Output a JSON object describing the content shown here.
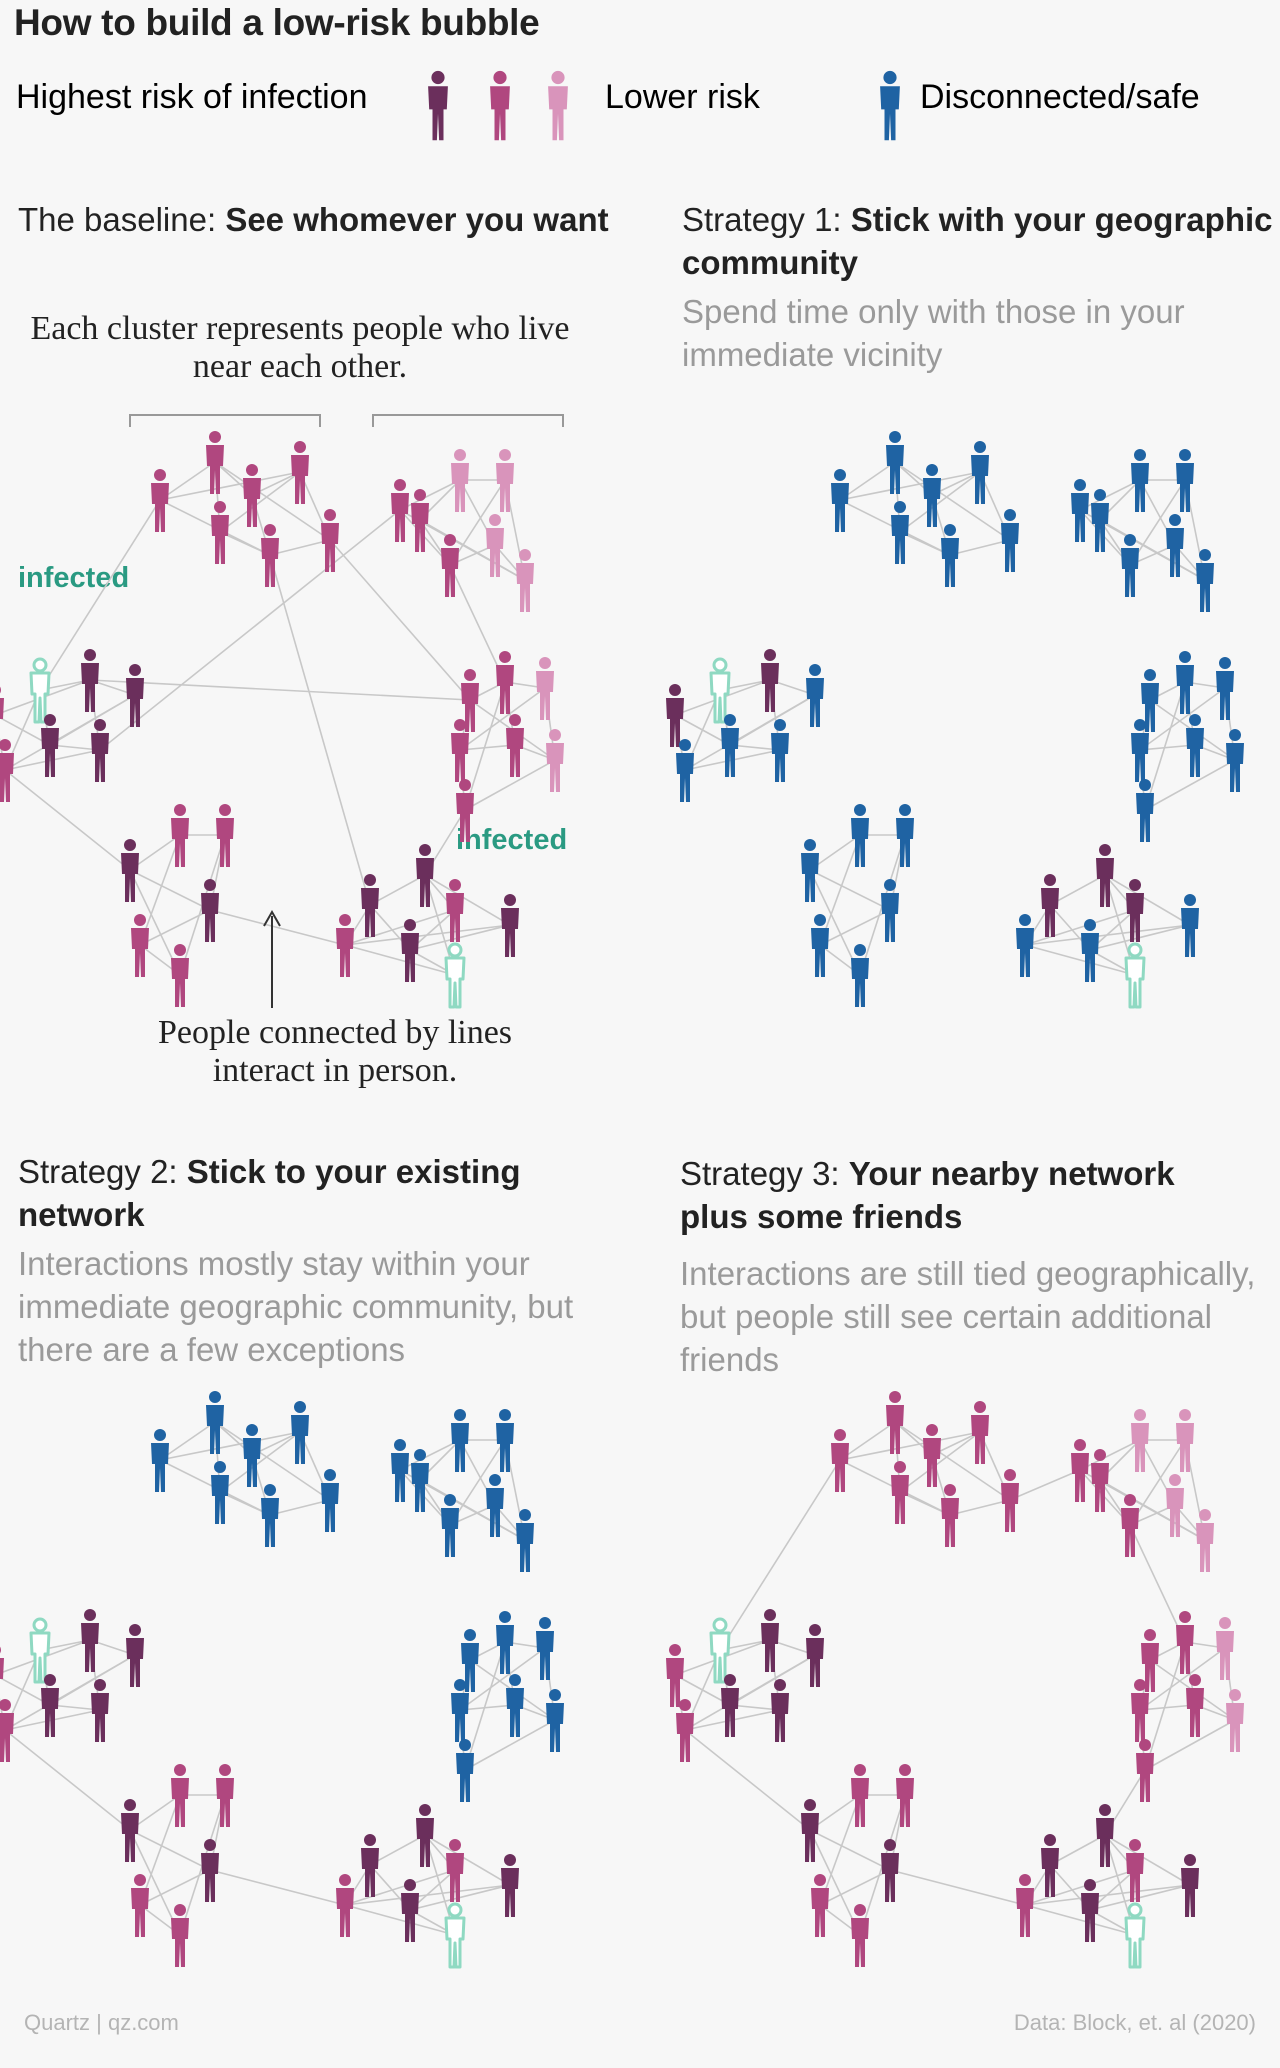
{
  "title": "How to build a low-risk bubble",
  "legend": {
    "high_label": "Highest risk of infection",
    "low_label": "Lower risk",
    "safe_label": "Disconnected/safe"
  },
  "colors": {
    "high": "#6b2f5c",
    "mid": "#b0477f",
    "low": "#d994bb",
    "safe": "#1f63a3",
    "infected_outline": "#8fd9c2",
    "infected_fill": "#ffffff",
    "infected_text": "#2a9a82",
    "line": "#c8c8c8"
  },
  "panels": {
    "baseline": {
      "prefix": "The baseline: ",
      "bold": "See whomever you want",
      "annotation_top": "Each cluster represents people who live near each other.",
      "annotation_bottom": "People connected by lines interact in person.",
      "infected_label_1": "infected",
      "infected_label_2": "infected"
    },
    "s1": {
      "prefix": "Strategy 1: ",
      "bold": "Stick with your geographic community",
      "subtitle": "Spend time only with those in your immediate vicinity"
    },
    "s2": {
      "prefix": "Strategy 2: ",
      "bold": "Stick to your existing network",
      "subtitle": "Interactions mostly stay within your immediate geographic community, but there are a few exceptions"
    },
    "s3": {
      "prefix": "Strategy 3: ",
      "bold": "Your nearby network plus some friends",
      "subtitle": "Interactions are still tied geographically, but people still see certain additional friends"
    }
  },
  "footer": {
    "source_left": "Quartz | qz.com",
    "source_right": "Data: Block, et. al (2020)"
  }
}
